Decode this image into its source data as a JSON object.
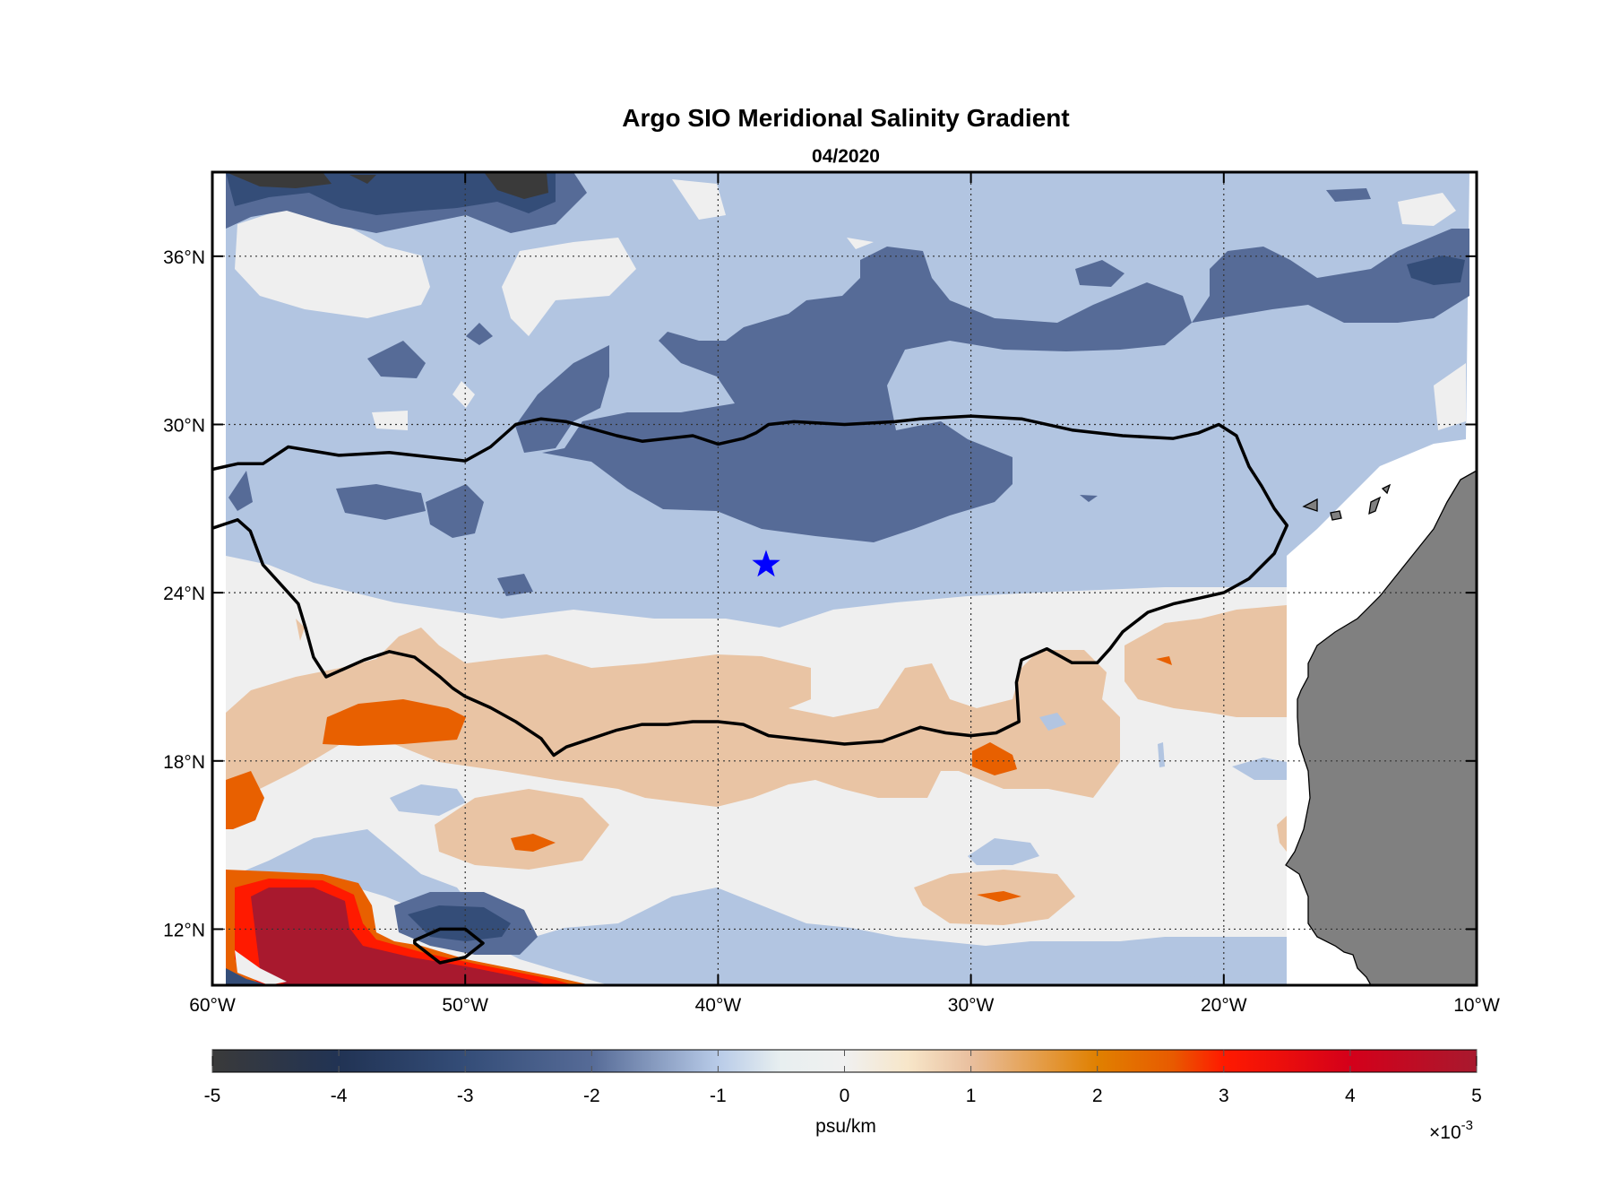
{
  "chart_data": {
    "type": "heatmap",
    "title": "Argo SIO Meridional Salinity Gradient",
    "subtitle": "04/2020",
    "x_axis": {
      "range": [
        -60,
        -10
      ],
      "ticks": [
        -60,
        -50,
        -40,
        -30,
        -20,
        -10
      ],
      "tick_labels": [
        "60°W",
        "50°W",
        "40°W",
        "30°W",
        "20°W",
        "10°W"
      ]
    },
    "y_axis": {
      "range": [
        10,
        39
      ],
      "ticks": [
        12,
        18,
        24,
        30,
        36
      ],
      "tick_labels": [
        "12°N",
        "18°N",
        "24°N",
        "30°N",
        "36°N"
      ]
    },
    "grid": true,
    "marker": {
      "type": "star",
      "lon": -38.1,
      "lat": 25.0,
      "color": "#0000ff"
    },
    "colorbar": {
      "label": "psu/km",
      "range": [
        -5,
        5
      ],
      "ticks": [
        -5,
        -4,
        -3,
        -2,
        -1,
        0,
        1,
        2,
        3,
        4,
        5
      ],
      "tick_labels": [
        "-5",
        "-4",
        "-3",
        "-2",
        "-1",
        "0",
        "1",
        "2",
        "3",
        "4",
        "5"
      ],
      "scale_base": "×10",
      "scale_exponent": "-3",
      "stops": [
        {
          "value": -5,
          "color": "#3a3a3a"
        },
        {
          "value": -4,
          "color": "#213354"
        },
        {
          "value": -3,
          "color": "#344d78"
        },
        {
          "value": -2,
          "color": "#566b97"
        },
        {
          "value": -1,
          "color": "#b8cbe8"
        },
        {
          "value": -0.5,
          "color": "#e8eff0"
        },
        {
          "value": 0,
          "color": "#f0f0f0"
        },
        {
          "value": 0.5,
          "color": "#f7e6c9"
        },
        {
          "value": 1,
          "color": "#e9bf9e"
        },
        {
          "value": 2,
          "color": "#e08000"
        },
        {
          "value": 2.6,
          "color": "#e85a00"
        },
        {
          "value": 3,
          "color": "#ff1a00"
        },
        {
          "value": 4,
          "color": "#d4001a"
        },
        {
          "value": 5,
          "color": "#a8192e"
        }
      ]
    },
    "boundary_contour": {
      "upper": [
        [
          -60,
          28.4
        ],
        [
          -59,
          28.6
        ],
        [
          -58,
          28.6
        ],
        [
          -57,
          29.2
        ],
        [
          -55,
          28.9
        ],
        [
          -53,
          29.0
        ],
        [
          -51,
          28.8
        ],
        [
          -50,
          28.7
        ],
        [
          -49,
          29.2
        ],
        [
          -48,
          30.0
        ],
        [
          -47,
          30.2
        ],
        [
          -46,
          30.1
        ],
        [
          -44,
          29.6
        ],
        [
          -43,
          29.4
        ],
        [
          -41,
          29.6
        ],
        [
          -40,
          29.3
        ],
        [
          -39,
          29.5
        ],
        [
          -38.5,
          29.7
        ],
        [
          -38,
          30.0
        ],
        [
          -37,
          30.1
        ],
        [
          -35,
          30.0
        ],
        [
          -33,
          30.1
        ],
        [
          -32,
          30.2
        ],
        [
          -30,
          30.3
        ],
        [
          -28,
          30.2
        ],
        [
          -26,
          29.8
        ],
        [
          -24,
          29.6
        ],
        [
          -22,
          29.5
        ],
        [
          -21,
          29.7
        ],
        [
          -20.2,
          30.0
        ],
        [
          -19.5,
          29.6
        ],
        [
          -19,
          28.5
        ],
        [
          -18.5,
          27.8
        ],
        [
          -18,
          27.0
        ],
        [
          -17.5,
          26.4
        ],
        [
          -18,
          25.4
        ],
        [
          -19,
          24.5
        ],
        [
          -20,
          24.0
        ],
        [
          -21,
          23.8
        ],
        [
          -22,
          23.6
        ],
        [
          -23,
          23.3
        ],
        [
          -24,
          22.6
        ],
        [
          -24.5,
          22.0
        ],
        [
          -25,
          21.5
        ],
        [
          -26,
          21.5
        ],
        [
          -27,
          22.0
        ],
        [
          -28,
          21.6
        ],
        [
          -28.2,
          20.8
        ],
        [
          -28.1,
          19.4
        ],
        [
          -29,
          19.0
        ],
        [
          -30,
          18.9
        ],
        [
          -31,
          19.0
        ],
        [
          -32,
          19.2
        ],
        [
          -33.5,
          18.7
        ],
        [
          -35,
          18.6
        ],
        [
          -36,
          18.7
        ],
        [
          -37,
          18.8
        ],
        [
          -38,
          18.9
        ],
        [
          -39,
          19.3
        ],
        [
          -40,
          19.4
        ],
        [
          -41,
          19.4
        ],
        [
          -42,
          19.3
        ],
        [
          -43,
          19.3
        ],
        [
          -44,
          19.1
        ],
        [
          -45,
          18.8
        ],
        [
          -46,
          18.5
        ],
        [
          -46.5,
          18.2
        ],
        [
          -47,
          18.8
        ],
        [
          -48,
          19.4
        ],
        [
          -49,
          19.9
        ],
        [
          -50,
          20.3
        ],
        [
          -50.5,
          20.6
        ],
        [
          -51,
          21.0
        ],
        [
          -52,
          21.7
        ],
        [
          -53,
          21.9
        ],
        [
          -54,
          21.6
        ],
        [
          -55,
          21.2
        ],
        [
          -55.5,
          21.0
        ],
        [
          -56,
          21.7
        ],
        [
          -56.3,
          22.7
        ],
        [
          -56.6,
          23.6
        ],
        [
          -57,
          24.0
        ],
        [
          -58,
          25.0
        ],
        [
          -58.5,
          26.2
        ],
        [
          -59,
          26.6
        ],
        [
          -60,
          26.3
        ]
      ],
      "loop": [
        [
          -52,
          11.6
        ],
        [
          -51,
          12.0
        ],
        [
          -50,
          12.0
        ],
        [
          -49.3,
          11.5
        ],
        [
          -50,
          11.0
        ],
        [
          -51,
          10.8
        ],
        [
          -52,
          11.5
        ]
      ]
    }
  }
}
